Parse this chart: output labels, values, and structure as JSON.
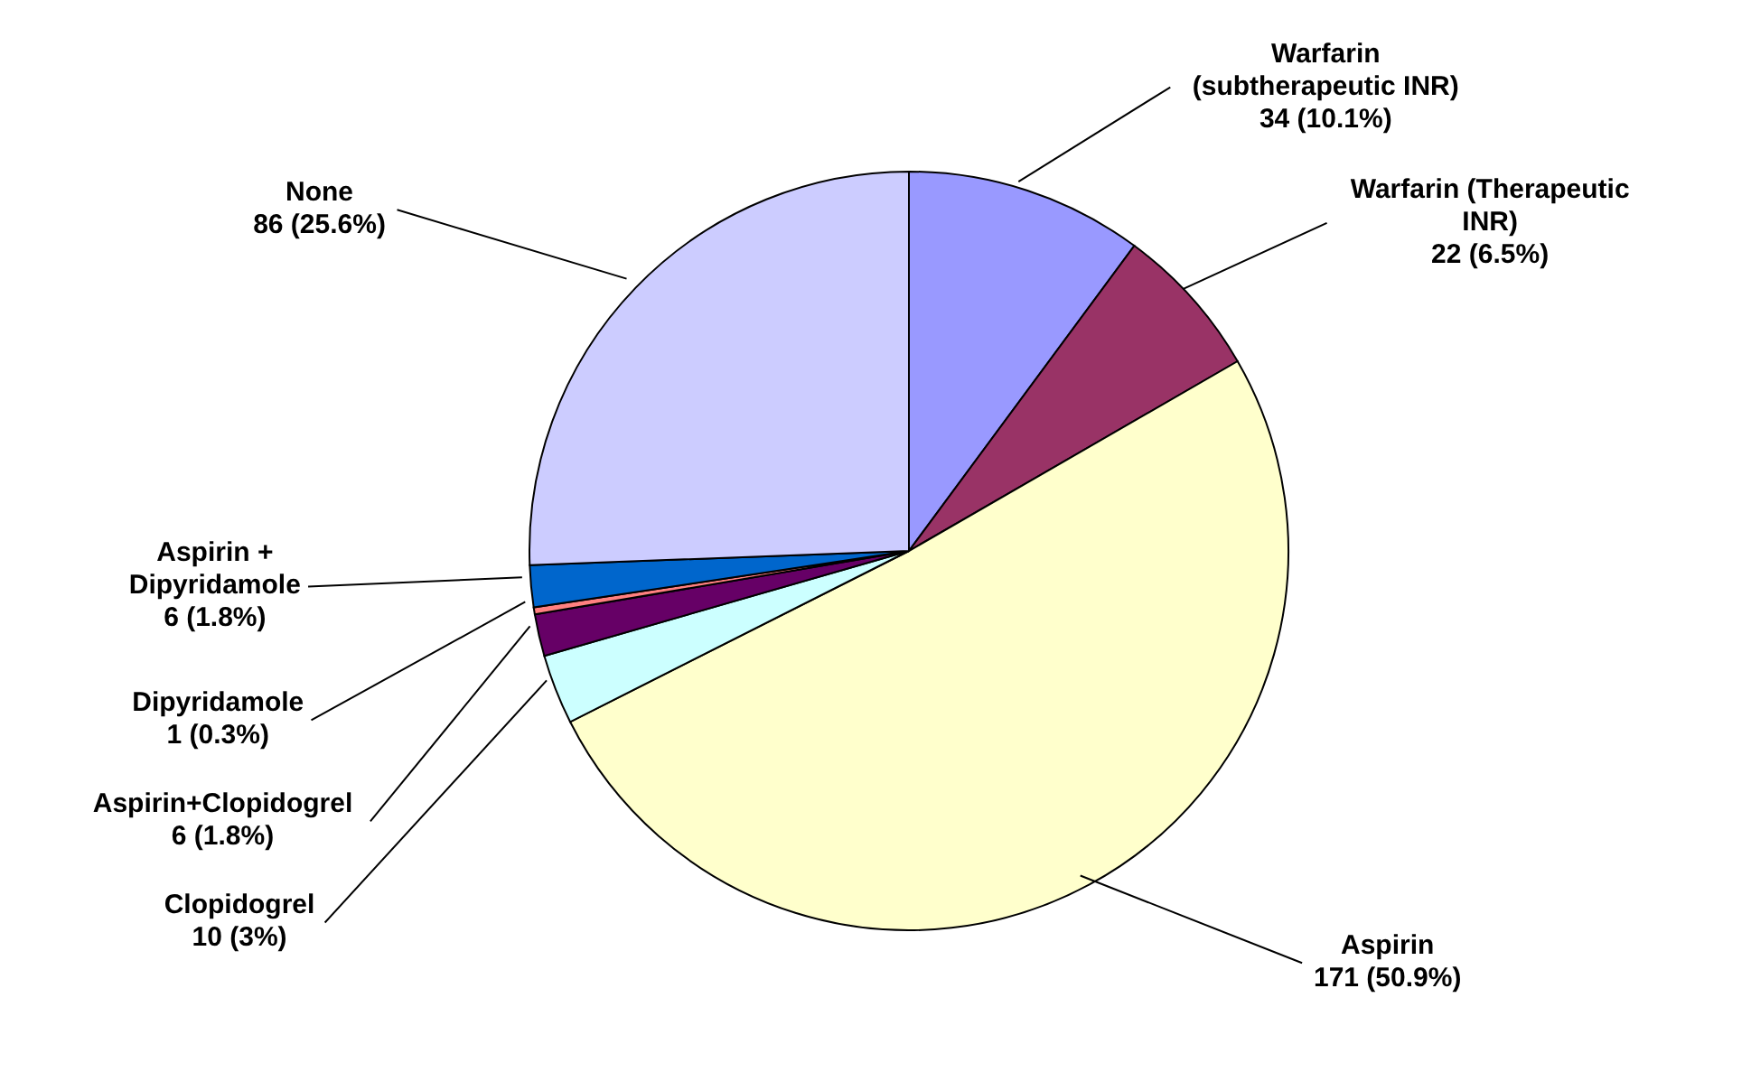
{
  "chart_data": {
    "type": "pie",
    "categories": [
      "Warfarin (subtherapeutic INR)",
      "Warfarin (Therapeutic INR)",
      "Aspirin",
      "Clopidogrel",
      "Aspirin+Clopidogrel",
      "Dipyridamole",
      "Aspirin + Dipyridamole",
      "None"
    ],
    "values": [
      34,
      22,
      171,
      10,
      6,
      1,
      6,
      86
    ],
    "value_labels": [
      "34 (10.1%)",
      "22 (6.5%)",
      "171 (50.9%)",
      "10 (3%)",
      "6 (1.8%)",
      "1 (0.3%)",
      "6 (1.8%)",
      "86 (25.6%)"
    ],
    "colors": [
      "#9999ff",
      "#993366",
      "#ffffcc",
      "#ccffff",
      "#660066",
      "#ff8080",
      "#0066cc",
      "#ccccff"
    ]
  }
}
